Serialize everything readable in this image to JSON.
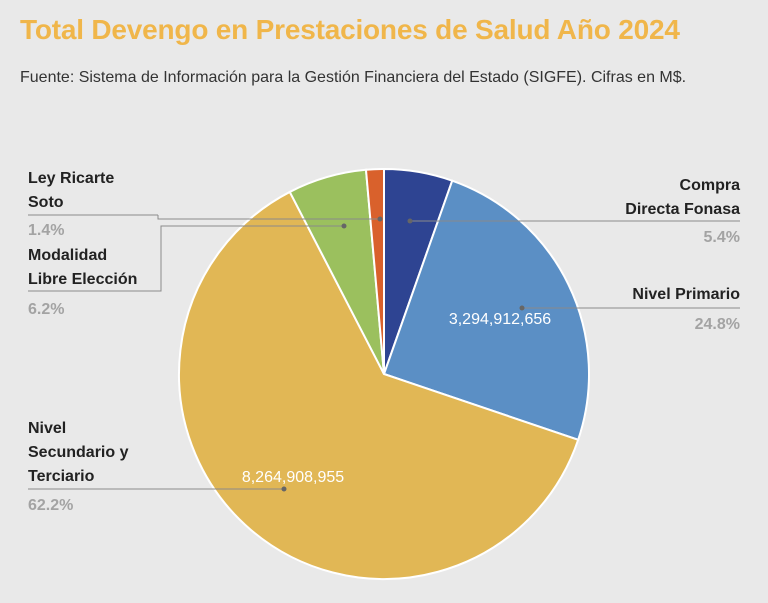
{
  "header": {
    "title": "Total Devengo en Prestaciones de Salud Año 2024",
    "subtitle": "Fuente: Sistema de Información para la Gestión Financiera del Estado (SIGFE). Cifras en M$."
  },
  "chart_data": {
    "type": "pie",
    "title": "Total Devengo en Prestaciones de Salud Año 2024",
    "subtitle": "Fuente: Sistema de Información para la Gestión Financiera del Estado (SIGFE). Cifras en M$.",
    "start_angle_deg": 0,
    "direction": "clockwise",
    "slices": [
      {
        "key": "compra",
        "label_lines": [
          "Compra",
          "Directa Fonasa"
        ],
        "percent": 5.4,
        "percent_label": "5.4%",
        "value": null,
        "value_label": "",
        "color": "#2e4492"
      },
      {
        "key": "primario",
        "label_lines": [
          "Nivel Primario"
        ],
        "percent": 24.8,
        "percent_label": "24.8%",
        "value": 3294912656,
        "value_label": "3,294,912,656",
        "color": "#5b8fc5"
      },
      {
        "key": "secundario",
        "label_lines": [
          "Nivel",
          "Secundario y",
          "Terciario"
        ],
        "percent": 62.2,
        "percent_label": "62.2%",
        "value": 8264908955,
        "value_label": "8,264,908,955",
        "color": "#e1b755"
      },
      {
        "key": "mle",
        "label_lines": [
          "Modalidad",
          "Libre Elección"
        ],
        "percent": 6.2,
        "percent_label": "6.2%",
        "value": null,
        "value_label": "",
        "color": "#9bc05e"
      },
      {
        "key": "ricarte",
        "label_lines": [
          "Ley Ricarte",
          "Soto"
        ],
        "percent": 1.4,
        "percent_label": "1.4%",
        "value": null,
        "value_label": "",
        "color": "#d9612c"
      }
    ]
  }
}
